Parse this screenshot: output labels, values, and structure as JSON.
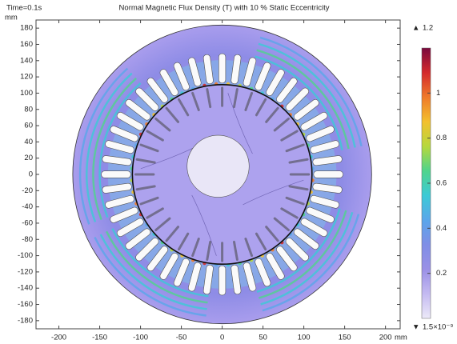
{
  "chart_data": {
    "type": "field",
    "time_label": "Time=0.1s",
    "title": "Normal Magnetic Flux Density (T) with 10 % Static Eccentricity",
    "y_unit": "mm",
    "x_unit": "mm",
    "xlim": [
      -228,
      218
    ],
    "ylim": [
      -190,
      190
    ],
    "xticks": [
      -200,
      -150,
      -100,
      -50,
      0,
      50,
      100,
      150,
      200
    ],
    "yticks": [
      180,
      160,
      140,
      120,
      100,
      80,
      60,
      40,
      20,
      0,
      -20,
      -40,
      -60,
      -80,
      -100,
      -120,
      -140,
      -160,
      -180
    ],
    "colorbar": {
      "max": 1.2,
      "min": {
        "value": 1.5e-09,
        "label": "1.5×10⁻⁹"
      },
      "ticks": [
        0.2,
        0.4,
        0.6,
        0.8,
        1
      ],
      "colormap": [
        "#ece9f8",
        "#c4baf1",
        "#9a90e6",
        "#7f8ee6",
        "#5aa6ea",
        "#3ccad6",
        "#4fd48c",
        "#b6d83c",
        "#f3c02e",
        "#ef7a2a",
        "#d42a2c",
        "#7a0a3e"
      ]
    }
  }
}
